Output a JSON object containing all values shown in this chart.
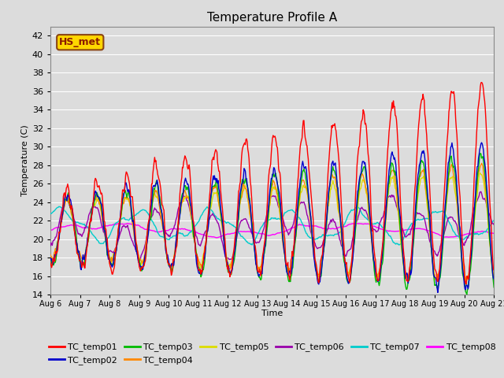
{
  "title": "Temperature Profile A",
  "xlabel": "Time",
  "ylabel": "Temperature (C)",
  "ylim": [
    14,
    43
  ],
  "yticks": [
    14,
    16,
    18,
    20,
    22,
    24,
    26,
    28,
    30,
    32,
    34,
    36,
    38,
    40,
    42
  ],
  "xtick_labels": [
    "Aug 6",
    "Aug 7",
    "Aug 8",
    "Aug 9",
    "Aug 10",
    "Aug 11",
    "Aug 12",
    "Aug 13",
    "Aug 14",
    "Aug 15",
    "Aug 16",
    "Aug 17",
    "Aug 18",
    "Aug 19",
    "Aug 20",
    "Aug 21"
  ],
  "annotation_text": "HS_met",
  "annotation_color": "#8B1A00",
  "annotation_bg": "#FFD700",
  "annotation_border": "#8B4513",
  "series_colors": {
    "TC_temp01": "#FF0000",
    "TC_temp02": "#0000CC",
    "TC_temp03": "#00BB00",
    "TC_temp04": "#FF8800",
    "TC_temp05": "#DDDD00",
    "TC_temp06": "#9900AA",
    "TC_temp07": "#00CCCC",
    "TC_temp08": "#FF00FF"
  },
  "background_color": "#DCDCDC",
  "plot_bg_color": "#DCDCDC",
  "grid_color": "#FFFFFF",
  "linewidth": 1.0,
  "n_days": 15,
  "n_points_per_day": 48
}
